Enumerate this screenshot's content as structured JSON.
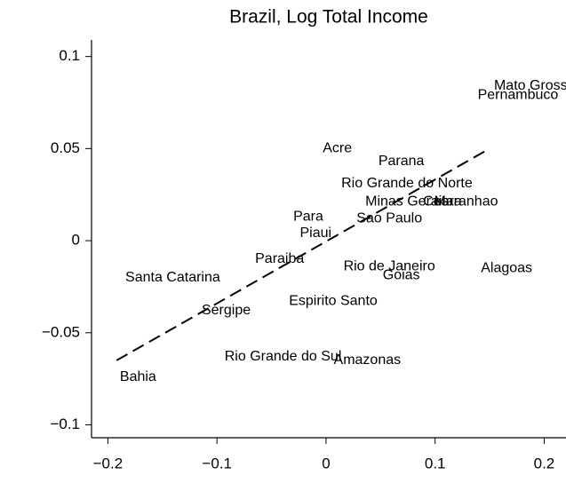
{
  "chart_data": {
    "type": "scatter",
    "title": "Brazil, Log Total Income",
    "labels": [
      "Mato Grosso",
      "Pernambuco",
      "Acre",
      "Parana",
      "Rio Grande do Norte",
      "Minas Gerais",
      "Ceara",
      "Maranhao",
      "Para",
      "Sao Paulo",
      "Piaui",
      "Paraiba",
      "Rio de Janeiro",
      "Goias",
      "Alagoas",
      "Santa Catarina",
      "Espirito Santo",
      "Sergipe",
      "Rio Grande do Sul",
      "Amazonas",
      "Bahia"
    ],
    "x": [
      0.154,
      0.139,
      -0.003,
      0.048,
      0.014,
      0.036,
      0.089,
      0.099,
      -0.03,
      0.028,
      -0.024,
      -0.065,
      0.016,
      0.052,
      0.142,
      -0.184,
      -0.034,
      -0.114,
      -0.093,
      0.007,
      -0.189
    ],
    "y": [
      0.084,
      0.079,
      0.05,
      0.043,
      0.031,
      0.021,
      0.021,
      0.021,
      0.013,
      0.012,
      0.004,
      -0.01,
      -0.014,
      -0.019,
      -0.015,
      -0.02,
      -0.033,
      -0.038,
      -0.063,
      -0.065,
      -0.074
    ],
    "fit": {
      "x": [
        -0.192,
        0.147
      ],
      "y": [
        -0.065,
        0.049
      ]
    },
    "xlim": [
      -0.215,
      0.22
    ],
    "ylim": [
      -0.107,
      0.109
    ],
    "xticks": [
      {
        "value": -0.2,
        "label": "−0.2"
      },
      {
        "value": -0.1,
        "label": "−0.1"
      },
      0,
      0.1,
      0.2
    ],
    "yticks": [
      {
        "value": -0.1,
        "label": "−0.1"
      },
      {
        "value": -0.05,
        "label": "−0.05"
      },
      0,
      0.05,
      0.1
    ],
    "color": "#000000"
  }
}
